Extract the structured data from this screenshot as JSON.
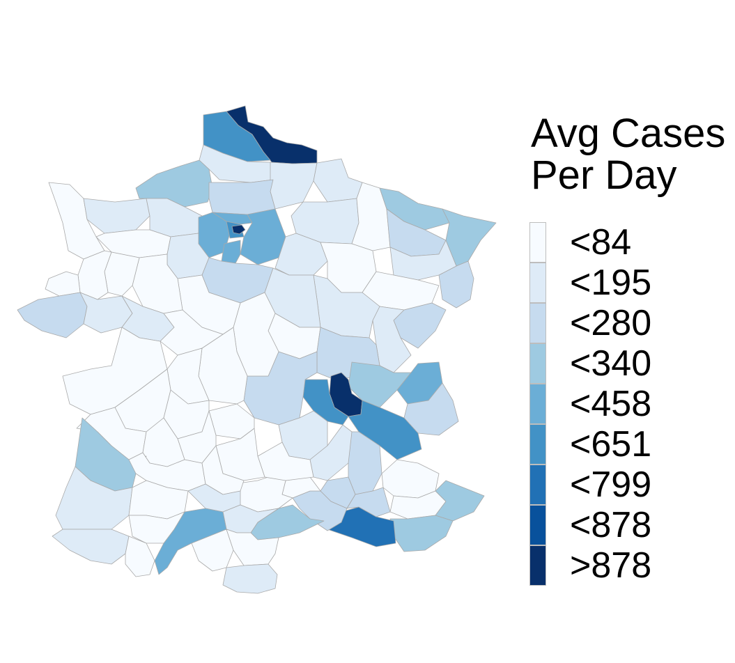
{
  "legend": {
    "title_line1": "Avg Cases",
    "title_line2": "Per Day",
    "bins": [
      {
        "label": "<84",
        "color": "#f7fbff"
      },
      {
        "label": "<195",
        "color": "#deebf7"
      },
      {
        "label": "<280",
        "color": "#c6dbef"
      },
      {
        "label": "<340",
        "color": "#9ecae1"
      },
      {
        "label": "<458",
        "color": "#6baed6"
      },
      {
        "label": "<651",
        "color": "#4292c6"
      },
      {
        "label": "<799",
        "color": "#2171b5"
      },
      {
        "label": "<878",
        "color": "#08519c"
      },
      {
        "label": ">878",
        "color": "#08306b"
      }
    ]
  },
  "map": {
    "region": "France (metropolitan departments)",
    "border_color": "#a9a9a9",
    "background": "#ffffff"
  }
}
